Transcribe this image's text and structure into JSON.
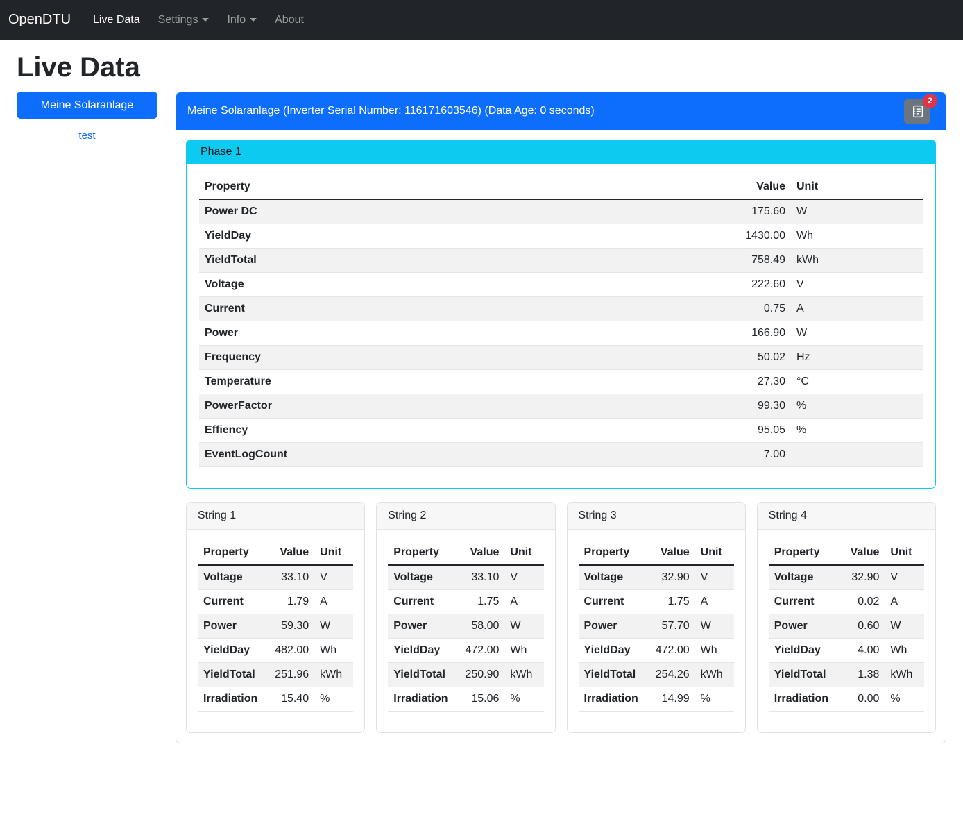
{
  "navbar": {
    "brand": "OpenDTU",
    "items": [
      {
        "label": "Live Data",
        "active": true,
        "dropdown": false
      },
      {
        "label": "Settings",
        "active": false,
        "dropdown": true
      },
      {
        "label": "Info",
        "active": false,
        "dropdown": true
      },
      {
        "label": "About",
        "active": false,
        "dropdown": false
      }
    ]
  },
  "page": {
    "title": "Live Data"
  },
  "sidebar": {
    "inverter_button_label": "Meine Solaranlage",
    "test_link_label": "test"
  },
  "inverter": {
    "header": "Meine Solaranlage (Inverter Serial Number: 116171603546) (Data Age: 0 seconds)",
    "eventlog_icon": "journal-text-icon",
    "eventlog_badge": "2",
    "phase": {
      "title": "Phase 1",
      "columns": [
        "Property",
        "Value",
        "Unit"
      ],
      "rows": [
        [
          "Power DC",
          "175.60",
          "W"
        ],
        [
          "YieldDay",
          "1430.00",
          "Wh"
        ],
        [
          "YieldTotal",
          "758.49",
          "kWh"
        ],
        [
          "Voltage",
          "222.60",
          "V"
        ],
        [
          "Current",
          "0.75",
          "A"
        ],
        [
          "Power",
          "166.90",
          "W"
        ],
        [
          "Frequency",
          "50.02",
          "Hz"
        ],
        [
          "Temperature",
          "27.30",
          "°C"
        ],
        [
          "PowerFactor",
          "99.30",
          "%"
        ],
        [
          "Effiency",
          "95.05",
          "%"
        ],
        [
          "EventLogCount",
          "7.00",
          ""
        ]
      ]
    },
    "strings": [
      {
        "title": "String 1",
        "columns": [
          "Property",
          "Value",
          "Unit"
        ],
        "rows": [
          [
            "Voltage",
            "33.10",
            "V"
          ],
          [
            "Current",
            "1.79",
            "A"
          ],
          [
            "Power",
            "59.30",
            "W"
          ],
          [
            "YieldDay",
            "482.00",
            "Wh"
          ],
          [
            "YieldTotal",
            "251.96",
            "kWh"
          ],
          [
            "Irradiation",
            "15.40",
            "%"
          ]
        ]
      },
      {
        "title": "String 2",
        "columns": [
          "Property",
          "Value",
          "Unit"
        ],
        "rows": [
          [
            "Voltage",
            "33.10",
            "V"
          ],
          [
            "Current",
            "1.75",
            "A"
          ],
          [
            "Power",
            "58.00",
            "W"
          ],
          [
            "YieldDay",
            "472.00",
            "Wh"
          ],
          [
            "YieldTotal",
            "250.90",
            "kWh"
          ],
          [
            "Irradiation",
            "15.06",
            "%"
          ]
        ]
      },
      {
        "title": "String 3",
        "columns": [
          "Property",
          "Value",
          "Unit"
        ],
        "rows": [
          [
            "Voltage",
            "32.90",
            "V"
          ],
          [
            "Current",
            "1.75",
            "A"
          ],
          [
            "Power",
            "57.70",
            "W"
          ],
          [
            "YieldDay",
            "472.00",
            "Wh"
          ],
          [
            "YieldTotal",
            "254.26",
            "kWh"
          ],
          [
            "Irradiation",
            "14.99",
            "%"
          ]
        ]
      },
      {
        "title": "String 4",
        "columns": [
          "Property",
          "Value",
          "Unit"
        ],
        "rows": [
          [
            "Voltage",
            "32.90",
            "V"
          ],
          [
            "Current",
            "0.02",
            "A"
          ],
          [
            "Power",
            "0.60",
            "W"
          ],
          [
            "YieldDay",
            "4.00",
            "Wh"
          ],
          [
            "YieldTotal",
            "1.38",
            "kWh"
          ],
          [
            "Irradiation",
            "0.00",
            "%"
          ]
        ]
      }
    ]
  },
  "colors": {
    "primary": "#0d6efd",
    "info": "#0dcaf0",
    "danger": "#dc3545",
    "secondary": "#6c757d",
    "navbar": "#212529"
  }
}
